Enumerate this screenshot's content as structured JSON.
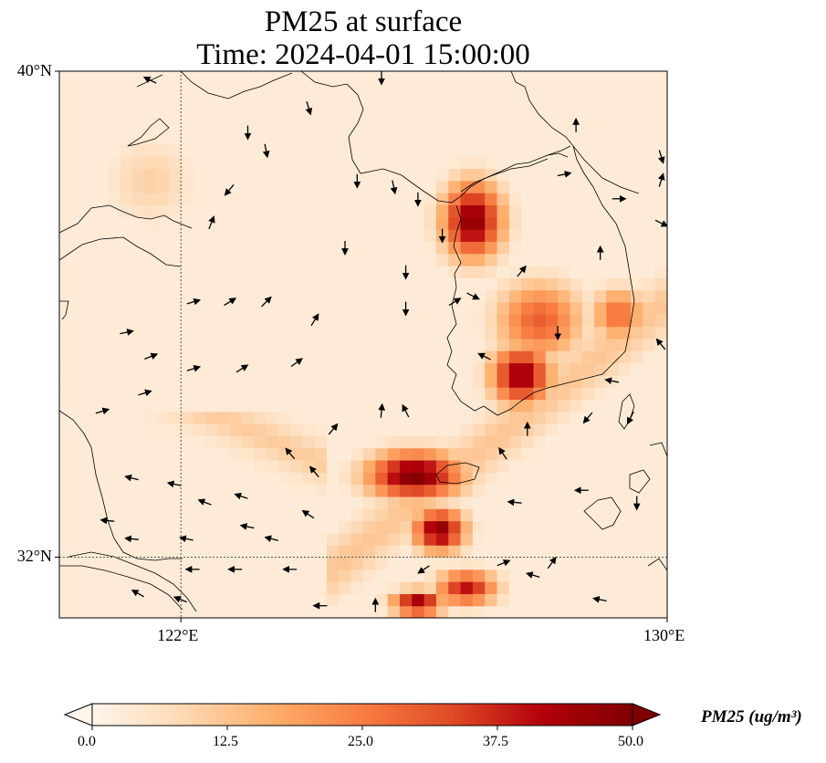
{
  "title_line1": "PM25 at surface",
  "title_line2": "Time: 2024-04-01 15:00:00",
  "lat_labels": [
    {
      "text": "40°N",
      "lat": 40
    },
    {
      "text": "32°N",
      "lat": 32
    }
  ],
  "lon_labels": [
    {
      "text": "122°E",
      "lon": 122
    },
    {
      "text": "130°E",
      "lon": 130
    }
  ],
  "extent": {
    "lon_min": 120,
    "lon_max": 130,
    "lat_min": 31,
    "lat_max": 40
  },
  "gridlines": {
    "lons": [
      122
    ],
    "lats": [
      32
    ]
  },
  "colorbar": {
    "label": "PM25 (ug/m³)",
    "min": 0.0,
    "max": 50.0,
    "ticks": [
      "0.0",
      "12.5",
      "25.0",
      "37.5",
      "50.0"
    ],
    "colors": [
      "#fff5eb",
      "#fdd9b4",
      "#fdae6b",
      "#f87d43",
      "#e04a25",
      "#b3000c",
      "#7f0000"
    ],
    "extend": "both"
  },
  "hotspots": [
    {
      "lon": 126.8,
      "lat": 37.55,
      "value": 48,
      "sx": 0.35,
      "sy": 0.45
    },
    {
      "lon": 125.85,
      "lat": 33.35,
      "value": 50,
      "sx": 0.55,
      "sy": 0.28
    },
    {
      "lon": 126.25,
      "lat": 32.45,
      "value": 48,
      "sx": 0.3,
      "sy": 0.25
    },
    {
      "lon": 127.6,
      "lat": 35.0,
      "value": 46,
      "sx": 0.35,
      "sy": 0.35
    },
    {
      "lon": 127.9,
      "lat": 35.9,
      "value": 30,
      "sx": 0.5,
      "sy": 0.45
    },
    {
      "lon": 129.2,
      "lat": 36.0,
      "value": 28,
      "sx": 0.3,
      "sy": 0.3
    },
    {
      "lon": 126.7,
      "lat": 31.5,
      "value": 40,
      "sx": 0.35,
      "sy": 0.2
    },
    {
      "lon": 125.9,
      "lat": 31.25,
      "value": 46,
      "sx": 0.3,
      "sy": 0.15
    },
    {
      "lon": 121.5,
      "lat": 38.2,
      "value": 10,
      "sx": 0.5,
      "sy": 0.5
    }
  ],
  "wind_vectors": [
    {
      "lon": 121.5,
      "lat": 39.85,
      "u": -1,
      "v": 0.5
    },
    {
      "lon": 125.3,
      "lat": 39.9,
      "u": 0,
      "v": -1
    },
    {
      "lon": 124.1,
      "lat": 39.4,
      "u": 0.3,
      "v": -1
    },
    {
      "lon": 123.1,
      "lat": 39.0,
      "u": 0,
      "v": -1
    },
    {
      "lon": 123.4,
      "lat": 38.7,
      "u": 0.2,
      "v": -1
    },
    {
      "lon": 122.8,
      "lat": 38.05,
      "u": -0.5,
      "v": -0.6
    },
    {
      "lon": 124.9,
      "lat": 38.2,
      "u": 0,
      "v": -1
    },
    {
      "lon": 125.5,
      "lat": 38.1,
      "u": 0.2,
      "v": -1
    },
    {
      "lon": 125.9,
      "lat": 37.9,
      "u": 0,
      "v": -1
    },
    {
      "lon": 126.3,
      "lat": 37.3,
      "u": 0,
      "v": -1
    },
    {
      "lon": 122.5,
      "lat": 37.5,
      "u": 0.4,
      "v": 1
    },
    {
      "lon": 124.7,
      "lat": 37.1,
      "u": 0,
      "v": -1
    },
    {
      "lon": 125.7,
      "lat": 36.7,
      "u": 0,
      "v": -1
    },
    {
      "lon": 125.7,
      "lat": 36.1,
      "u": 0,
      "v": -1
    },
    {
      "lon": 122.2,
      "lat": 36.2,
      "u": 1,
      "v": 0.3
    },
    {
      "lon": 122.8,
      "lat": 36.2,
      "u": 0.8,
      "v": 0.5
    },
    {
      "lon": 123.4,
      "lat": 36.2,
      "u": 0.6,
      "v": 0.6
    },
    {
      "lon": 124.2,
      "lat": 35.9,
      "u": 0.5,
      "v": 0.8
    },
    {
      "lon": 121.1,
      "lat": 35.7,
      "u": 1,
      "v": 0.2
    },
    {
      "lon": 121.5,
      "lat": 35.3,
      "u": 1,
      "v": 0.4
    },
    {
      "lon": 122.2,
      "lat": 35.1,
      "u": 1,
      "v": 0.3
    },
    {
      "lon": 123.0,
      "lat": 35.1,
      "u": 0.8,
      "v": 0.5
    },
    {
      "lon": 123.9,
      "lat": 35.2,
      "u": 0.7,
      "v": 0.5
    },
    {
      "lon": 121.4,
      "lat": 34.7,
      "u": 1,
      "v": 0.3
    },
    {
      "lon": 120.7,
      "lat": 34.4,
      "u": 1,
      "v": 0.3
    },
    {
      "lon": 125.3,
      "lat": 34.4,
      "u": 0.1,
      "v": 1
    },
    {
      "lon": 124.5,
      "lat": 34.1,
      "u": 0.5,
      "v": 0.6
    },
    {
      "lon": 125.7,
      "lat": 34.4,
      "u": -0.3,
      "v": 0.6
    },
    {
      "lon": 121.2,
      "lat": 33.3,
      "u": -0.8,
      "v": 0.2
    },
    {
      "lon": 121.9,
      "lat": 33.2,
      "u": -1,
      "v": 0.2
    },
    {
      "lon": 123.0,
      "lat": 33.0,
      "u": -0.9,
      "v": 0.3
    },
    {
      "lon": 124.2,
      "lat": 33.4,
      "u": -0.5,
      "v": 0.6
    },
    {
      "lon": 123.8,
      "lat": 33.7,
      "u": -0.5,
      "v": 0.6
    },
    {
      "lon": 122.4,
      "lat": 32.9,
      "u": -0.8,
      "v": 0.3
    },
    {
      "lon": 123.1,
      "lat": 32.5,
      "u": -1,
      "v": 0.2
    },
    {
      "lon": 124.1,
      "lat": 32.7,
      "u": -0.6,
      "v": 0.4
    },
    {
      "lon": 120.8,
      "lat": 32.6,
      "u": -1,
      "v": 0.1
    },
    {
      "lon": 121.2,
      "lat": 32.3,
      "u": -1,
      "v": 0.1
    },
    {
      "lon": 122.1,
      "lat": 32.3,
      "u": -1,
      "v": 0.2
    },
    {
      "lon": 123.5,
      "lat": 32.3,
      "u": -0.8,
      "v": 0.2
    },
    {
      "lon": 122.2,
      "lat": 31.8,
      "u": -1,
      "v": 0
    },
    {
      "lon": 122.9,
      "lat": 31.8,
      "u": -1,
      "v": 0
    },
    {
      "lon": 123.8,
      "lat": 31.8,
      "u": -1,
      "v": 0
    },
    {
      "lon": 122.0,
      "lat": 31.3,
      "u": -1,
      "v": 0.4
    },
    {
      "lon": 121.3,
      "lat": 31.4,
      "u": -0.9,
      "v": 0.5
    },
    {
      "lon": 124.3,
      "lat": 31.2,
      "u": -1,
      "v": 0
    },
    {
      "lon": 125.2,
      "lat": 31.2,
      "u": 0,
      "v": 1
    },
    {
      "lon": 128.2,
      "lat": 35.7,
      "u": 0,
      "v": -1
    },
    {
      "lon": 129.1,
      "lat": 34.9,
      "u": -1,
      "v": 0.2
    },
    {
      "lon": 128.7,
      "lat": 34.3,
      "u": -0.5,
      "v": -0.6
    },
    {
      "lon": 127.3,
      "lat": 33.7,
      "u": -0.4,
      "v": 0.6
    },
    {
      "lon": 127.7,
      "lat": 34.1,
      "u": 0,
      "v": 1
    },
    {
      "lon": 129.4,
      "lat": 34.3,
      "u": -0.4,
      "v": -0.8
    },
    {
      "lon": 129.9,
      "lat": 35.5,
      "u": -0.5,
      "v": 0.6
    },
    {
      "lon": 129.9,
      "lat": 37.5,
      "u": 1,
      "v": -0.5
    },
    {
      "lon": 129.9,
      "lat": 38.2,
      "u": 0.3,
      "v": 1
    },
    {
      "lon": 129.9,
      "lat": 38.6,
      "u": 0.3,
      "v": -1
    },
    {
      "lon": 128.5,
      "lat": 39.1,
      "u": 0,
      "v": 1
    },
    {
      "lon": 129.2,
      "lat": 37.9,
      "u": 1,
      "v": 0
    },
    {
      "lon": 128.3,
      "lat": 38.3,
      "u": 1,
      "v": 0.2
    },
    {
      "lon": 126.5,
      "lat": 36.2,
      "u": 0.5,
      "v": 0.3
    },
    {
      "lon": 127.6,
      "lat": 36.7,
      "u": 0.5,
      "v": 0.6
    },
    {
      "lon": 128.9,
      "lat": 37.0,
      "u": 0,
      "v": 1
    },
    {
      "lon": 126.8,
      "lat": 36.3,
      "u": 1,
      "v": -0.5
    },
    {
      "lon": 127.0,
      "lat": 35.3,
      "u": -1,
      "v": 0.5
    },
    {
      "lon": 127.3,
      "lat": 31.9,
      "u": 1,
      "v": 0.4
    },
    {
      "lon": 128.1,
      "lat": 31.9,
      "u": 0.5,
      "v": 0.7
    },
    {
      "lon": 128.9,
      "lat": 31.3,
      "u": -1,
      "v": 0.2
    },
    {
      "lon": 126.0,
      "lat": 31.8,
      "u": -0.6,
      "v": -0.4
    },
    {
      "lon": 127.5,
      "lat": 32.9,
      "u": -1,
      "v": 0.1
    },
    {
      "lon": 129.5,
      "lat": 32.9,
      "u": 0,
      "v": -1
    },
    {
      "lon": 128.6,
      "lat": 33.1,
      "u": -1,
      "v": 0
    },
    {
      "lon": 127.8,
      "lat": 31.7,
      "u": -1,
      "v": 0.3
    }
  ]
}
